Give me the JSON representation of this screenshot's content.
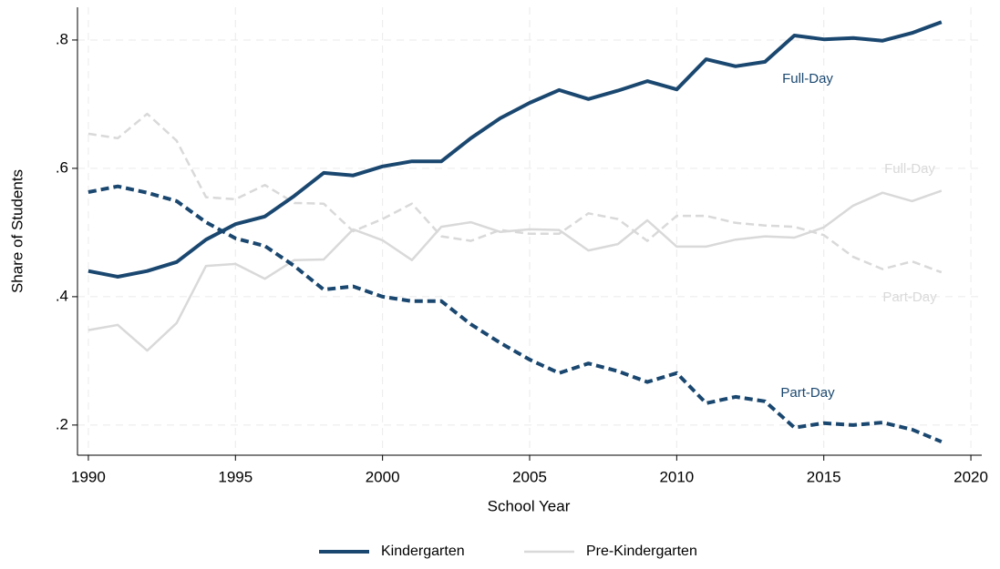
{
  "chart_data": {
    "type": "line",
    "x_label": "School Year",
    "y_label": "Share of Students",
    "x": [
      1990,
      1991,
      1992,
      1993,
      1994,
      1995,
      1996,
      1997,
      1998,
      1999,
      2000,
      2001,
      2002,
      2003,
      2004,
      2005,
      2006,
      2007,
      2008,
      2009,
      2010,
      2011,
      2012,
      2013,
      2014,
      2015,
      2016,
      2017,
      2018,
      2019
    ],
    "series": [
      {
        "name": "Kindergarten",
        "line_label": "Full-Day",
        "color": "#1a476f",
        "dashed": false,
        "values": [
          0.44,
          0.431,
          0.44,
          0.454,
          0.489,
          0.513,
          0.525,
          0.557,
          0.593,
          0.589,
          0.603,
          0.611,
          0.611,
          0.647,
          0.678,
          0.702,
          0.722,
          0.708,
          0.721,
          0.736,
          0.723,
          0.77,
          0.759,
          0.766,
          0.807,
          0.801,
          0.803,
          0.799,
          0.811,
          0.828
        ]
      },
      {
        "name": "Kindergarten",
        "line_label": "Part-Day",
        "color": "#1a476f",
        "dashed": true,
        "values": [
          0.563,
          0.572,
          0.562,
          0.549,
          0.516,
          0.491,
          0.479,
          0.448,
          0.411,
          0.416,
          0.4,
          0.393,
          0.393,
          0.357,
          0.328,
          0.302,
          0.281,
          0.296,
          0.284,
          0.267,
          0.281,
          0.234,
          0.244,
          0.237,
          0.196,
          0.203,
          0.2,
          0.204,
          0.193,
          0.174
        ]
      },
      {
        "name": "Pre-Kindergarten",
        "line_label": "Full-Day",
        "color": "#d9d9d9",
        "dashed": false,
        "values": [
          0.348,
          0.356,
          0.316,
          0.359,
          0.448,
          0.451,
          0.428,
          0.457,
          0.458,
          0.505,
          0.488,
          0.457,
          0.509,
          0.516,
          0.501,
          0.505,
          0.504,
          0.472,
          0.482,
          0.519,
          0.478,
          0.478,
          0.489,
          0.494,
          0.492,
          0.508,
          0.542,
          0.562,
          0.549,
          0.565
        ]
      },
      {
        "name": "Pre-Kindergarten",
        "line_label": "Part-Day",
        "color": "#d9d9d9",
        "dashed": true,
        "values": [
          0.654,
          0.647,
          0.685,
          0.643,
          0.555,
          0.552,
          0.574,
          0.546,
          0.545,
          0.502,
          0.521,
          0.545,
          0.494,
          0.487,
          0.504,
          0.498,
          0.498,
          0.53,
          0.521,
          0.487,
          0.526,
          0.526,
          0.515,
          0.511,
          0.509,
          0.496,
          0.462,
          0.443,
          0.455,
          0.438
        ]
      }
    ],
    "xlim": [
      1989.63,
      2020.37
    ],
    "xticks": [
      1990,
      1995,
      2000,
      2005,
      2010,
      2015,
      2020
    ],
    "ylim": [
      0.153,
      0.851
    ],
    "yticks": [
      {
        "value": 0.2,
        "label": ".2"
      },
      {
        "value": 0.4,
        "label": ".4"
      },
      {
        "value": 0.6,
        "label": ".6"
      },
      {
        "value": 0.8,
        "label": ".8"
      }
    ],
    "grid": true,
    "legend": "bottom"
  }
}
